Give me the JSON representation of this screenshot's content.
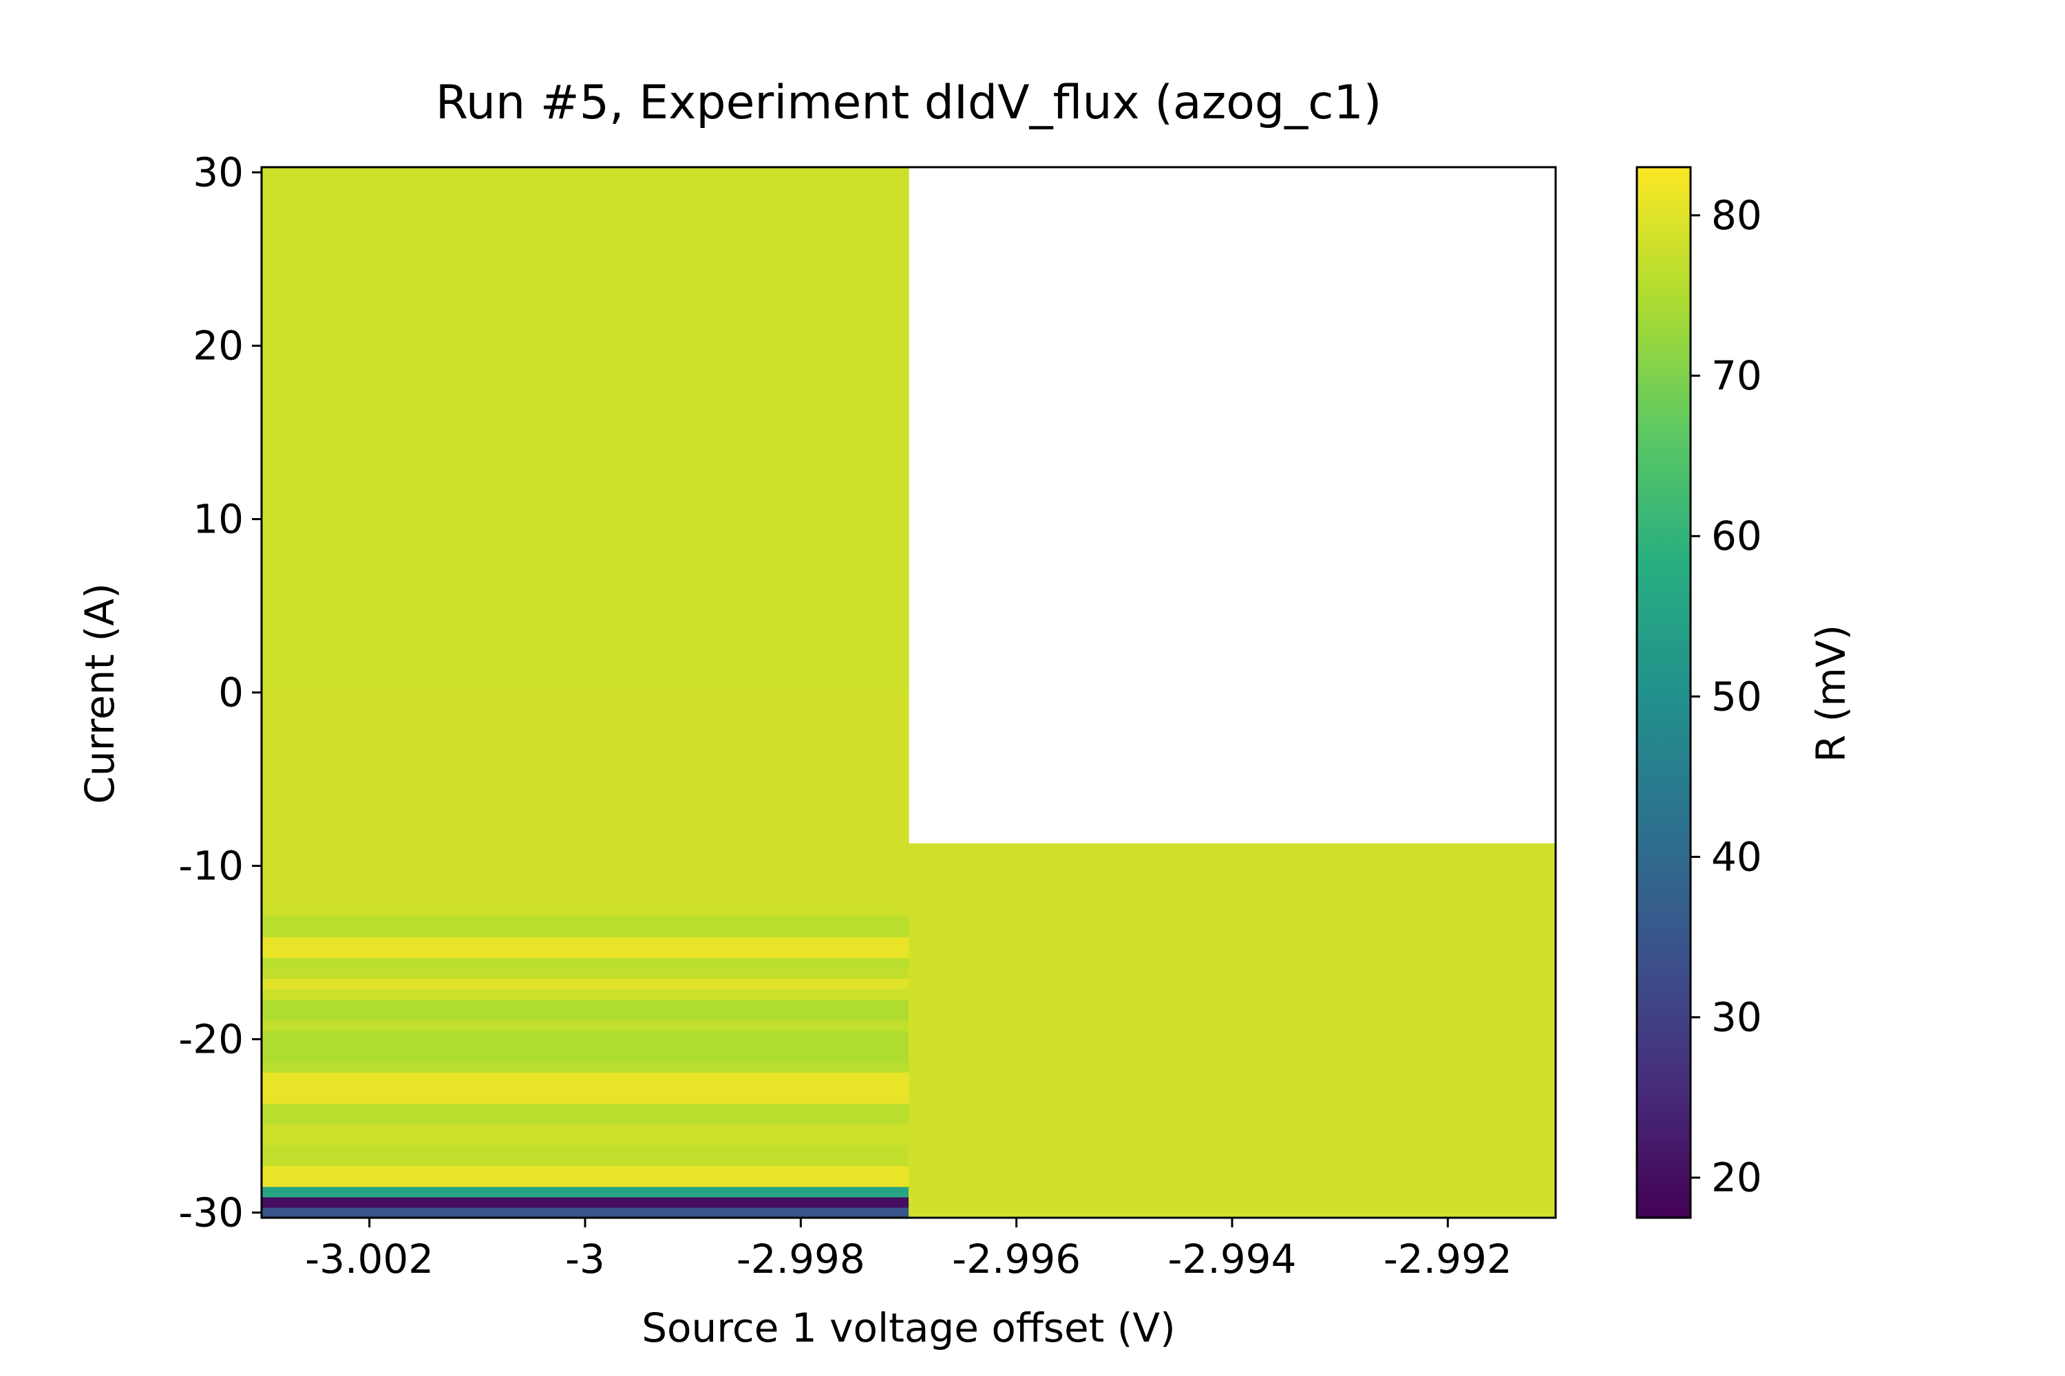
{
  "chart_data": {
    "type": "heatmap",
    "title": "Run #5, Experiment dIdV_flux (azog_c1)",
    "xlabel": "Source 1 voltage offset (V)",
    "ylabel": "Current (A)",
    "colorbar_label": "R (mV)",
    "colormap": "viridis",
    "xlim": [
      -3.003,
      -2.991
    ],
    "ylim": [
      -30.3,
      30.3
    ],
    "clim": [
      17.5,
      83
    ],
    "x_ticks": [
      -3.002,
      -3,
      -2.998,
      -2.996,
      -2.994,
      -2.992
    ],
    "x_tick_labels": [
      "-3.002",
      "-3",
      "-2.998",
      "-2.996",
      "-2.994",
      "-2.992"
    ],
    "y_ticks": [
      30,
      20,
      10,
      0,
      -10,
      -20,
      -30
    ],
    "y_tick_labels": [
      "30",
      "20",
      "10",
      "0",
      "-10",
      "-20",
      "-30"
    ],
    "colorbar_ticks": [
      80,
      70,
      60,
      50,
      40,
      30,
      20
    ],
    "colorbar_tick_labels": [
      "80",
      "70",
      "60",
      "50",
      "40",
      "30",
      "20"
    ],
    "columns": [
      {
        "x_range": [
          -3.003,
          -2.997
        ],
        "rows": [
          {
            "y_range": [
              -30.3,
              -29.7
            ],
            "value": 35
          },
          {
            "y_range": [
              -29.7,
              -29.1
            ],
            "value": 20
          },
          {
            "y_range": [
              -29.1,
              -28.5
            ],
            "value": 56
          },
          {
            "y_range": [
              -28.5,
              -27.3
            ],
            "value": 81
          },
          {
            "y_range": [
              -27.3,
              -26.1
            ],
            "value": 77
          },
          {
            "y_range": [
              -26.1,
              -24.9
            ],
            "value": 78
          },
          {
            "y_range": [
              -24.9,
              -23.7
            ],
            "value": 76
          },
          {
            "y_range": [
              -23.7,
              -21.9
            ],
            "value": 81
          },
          {
            "y_range": [
              -21.9,
              -21.3
            ],
            "value": 76
          },
          {
            "y_range": [
              -21.3,
              -19.5
            ],
            "value": 75
          },
          {
            "y_range": [
              -19.5,
              -18.9
            ],
            "value": 77
          },
          {
            "y_range": [
              -18.9,
              -17.7
            ],
            "value": 75
          },
          {
            "y_range": [
              -17.7,
              -17.1
            ],
            "value": 78
          },
          {
            "y_range": [
              -17.1,
              -16.5
            ],
            "value": 80
          },
          {
            "y_range": [
              -16.5,
              -15.9
            ],
            "value": 77
          },
          {
            "y_range": [
              -15.9,
              -15.3
            ],
            "value": 76
          },
          {
            "y_range": [
              -15.3,
              -14.1
            ],
            "value": 81
          },
          {
            "y_range": [
              -14.1,
              -12.9
            ],
            "value": 76
          },
          {
            "y_range": [
              -12.9,
              -12.3
            ],
            "value": 78
          },
          {
            "y_range": [
              -12.3,
              -9.9
            ],
            "value": 78.5
          },
          {
            "y_range": [
              -9.9,
              0
            ],
            "value": 78.5
          },
          {
            "y_range": [
              0,
              10
            ],
            "value": 78
          },
          {
            "y_range": [
              10,
              20
            ],
            "value": 78
          },
          {
            "y_range": [
              20,
              30.3
            ],
            "value": 78
          }
        ]
      },
      {
        "x_range": [
          -2.997,
          -2.991
        ],
        "rows": [
          {
            "y_range": [
              -30.3,
              -8.7
            ],
            "value": 78.5
          }
        ]
      }
    ]
  }
}
